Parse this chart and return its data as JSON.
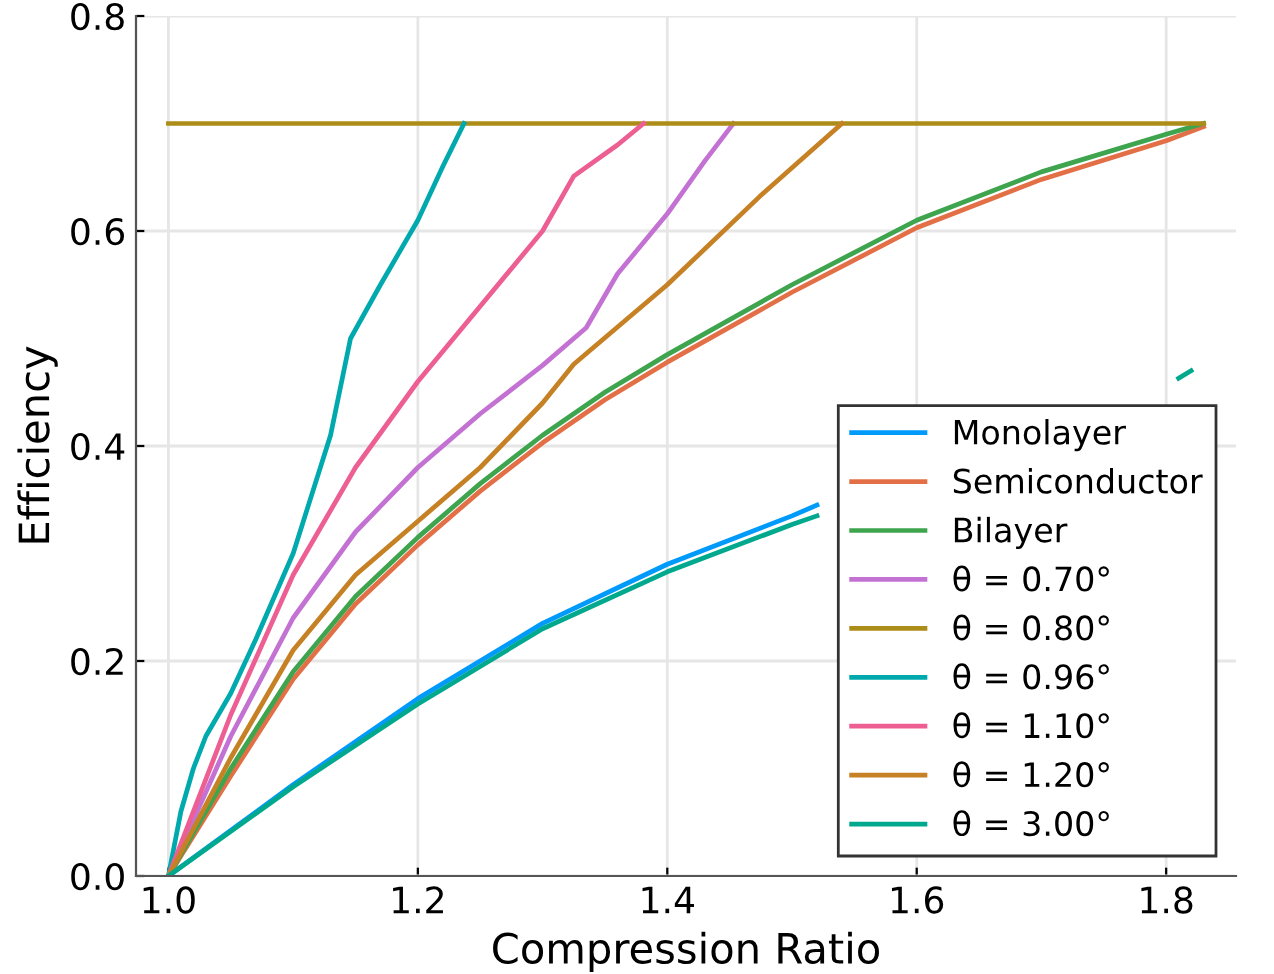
{
  "chart_data": {
    "type": "line",
    "xlabel": "Compression Ratio",
    "ylabel": "Efficiency",
    "xlim": [
      0.974,
      1.856
    ],
    "ylim": [
      0,
      0.8
    ],
    "xticks": [
      {
        "value": 1.0,
        "label": "1.0"
      },
      1.2,
      1.4,
      1.6,
      1.8
    ],
    "yticks": [
      {
        "value": 0,
        "label": "0.0"
      },
      0.2,
      0.4,
      0.6,
      0.8
    ],
    "grid": true,
    "legend": "bottom right",
    "line_style": "solid",
    "marker": "none",
    "series": [
      {
        "name": "Monolayer",
        "color": "#009afa",
        "x": [
          1.0,
          1.1,
          1.2,
          1.3,
          1.4,
          1.5,
          1.52
        ],
        "values": [
          0,
          0.085,
          0.165,
          0.235,
          0.29,
          0.335,
          0.345
        ]
      },
      {
        "name": "Semiconductor",
        "color": "#e36f47",
        "x": [
          1.0,
          1.05,
          1.1,
          1.15,
          1.2,
          1.25,
          1.3,
          1.35,
          1.4,
          1.5,
          1.6,
          1.7,
          1.8,
          1.83
        ],
        "values": [
          0,
          0.093,
          0.183,
          0.253,
          0.308,
          0.358,
          0.403,
          0.443,
          0.478,
          0.543,
          0.603,
          0.648,
          0.684,
          0.697
        ]
      },
      {
        "name": "Bilayer",
        "color": "#3ea44e",
        "x": [
          1.0,
          1.05,
          1.1,
          1.15,
          1.2,
          1.25,
          1.3,
          1.35,
          1.4,
          1.5,
          1.6,
          1.7,
          1.8,
          1.83
        ],
        "values": [
          0,
          0.1,
          0.19,
          0.26,
          0.315,
          0.365,
          0.41,
          0.45,
          0.485,
          0.55,
          0.61,
          0.655,
          0.69,
          0.7
        ]
      },
      {
        "name": "θ = 0.70°",
        "color": "#c371d2",
        "x": [
          1.0,
          1.05,
          1.1,
          1.15,
          1.2,
          1.25,
          1.3,
          1.335,
          1.36,
          1.4,
          1.43,
          1.453
        ],
        "values": [
          0,
          0.13,
          0.24,
          0.32,
          0.38,
          0.43,
          0.475,
          0.51,
          0.56,
          0.616,
          0.665,
          0.7
        ]
      },
      {
        "name": "θ = 0.80°",
        "color": "#ac8d18",
        "x": [
          1.0,
          1.83
        ],
        "values": [
          0.7,
          0.7
        ]
      },
      {
        "name": "θ = 0.96°",
        "color": "#00a9ad",
        "x": [
          1.0,
          1.01,
          1.02,
          1.03,
          1.05,
          1.07,
          1.1,
          1.13,
          1.146,
          1.17,
          1.2,
          1.22,
          1.237
        ],
        "values": [
          0,
          0.06,
          0.1,
          0.13,
          0.17,
          0.22,
          0.3,
          0.41,
          0.5,
          0.55,
          0.61,
          0.66,
          0.7
        ]
      },
      {
        "name": "θ = 1.10°",
        "color": "#ed5e93",
        "x": [
          1.0,
          1.05,
          1.1,
          1.15,
          1.2,
          1.25,
          1.3,
          1.325,
          1.36,
          1.381
        ],
        "values": [
          0,
          0.15,
          0.28,
          0.38,
          0.46,
          0.53,
          0.6,
          0.651,
          0.68,
          0.7
        ]
      },
      {
        "name": "θ = 1.20°",
        "color": "#c68125",
        "x": [
          1.0,
          1.05,
          1.1,
          1.15,
          1.2,
          1.25,
          1.3,
          1.325,
          1.4,
          1.474,
          1.54
        ],
        "values": [
          0,
          0.11,
          0.21,
          0.28,
          0.33,
          0.38,
          0.44,
          0.476,
          0.55,
          0.632,
          0.7
        ]
      },
      {
        "name": "θ = 3.00°",
        "color": "#00a98e",
        "x": [
          1.0,
          1.1,
          1.2,
          1.3,
          1.4,
          1.5,
          1.52,
          1.6,
          1.81,
          1.82
        ],
        "values": [
          0,
          0.083,
          0.16,
          0.23,
          0.283,
          0.327,
          0.335,
          null,
          0.463,
          0.47
        ]
      }
    ]
  }
}
